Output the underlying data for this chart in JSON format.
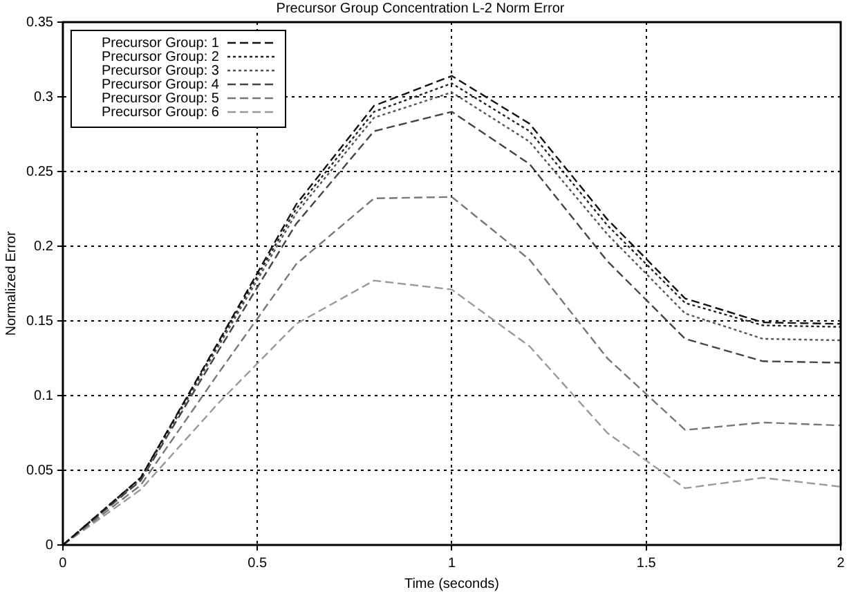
{
  "chart_data": {
    "type": "line",
    "title": "Precursor Group Concentration L-2 Norm Error",
    "xlabel": "Time (seconds)",
    "ylabel": "Normalized Error",
    "x": [
      0,
      0.2,
      0.4,
      0.6,
      0.8,
      1.0,
      1.2,
      1.4,
      1.6,
      1.8,
      2.0
    ],
    "series": [
      {
        "name": "Precursor Group: 1",
        "color": "#111111",
        "line_style": "dashed",
        "values": [
          0,
          0.045,
          0.136,
          0.228,
          0.294,
          0.314,
          0.282,
          0.218,
          0.165,
          0.149,
          0.148
        ]
      },
      {
        "name": "Precursor Group: 2",
        "color": "#222222",
        "line_style": "dotted",
        "values": [
          0,
          0.045,
          0.135,
          0.225,
          0.29,
          0.309,
          0.277,
          0.214,
          0.162,
          0.147,
          0.146
        ]
      },
      {
        "name": "Precursor Group: 3",
        "color": "#555555",
        "line_style": "dotted",
        "values": [
          0,
          0.044,
          0.133,
          0.222,
          0.286,
          0.303,
          0.27,
          0.208,
          0.155,
          0.138,
          0.137
        ]
      },
      {
        "name": "Precursor Group: 4",
        "color": "#444444",
        "line_style": "dashed",
        "values": [
          0,
          0.043,
          0.13,
          0.215,
          0.277,
          0.29,
          0.255,
          0.19,
          0.138,
          0.123,
          0.122
        ]
      },
      {
        "name": "Precursor Group: 5",
        "color": "#777777",
        "line_style": "dashed",
        "values": [
          0,
          0.04,
          0.115,
          0.188,
          0.232,
          0.233,
          0.191,
          0.125,
          0.077,
          0.082,
          0.08
        ]
      },
      {
        "name": "Precursor Group: 6",
        "color": "#999999",
        "line_style": "dashed",
        "values": [
          0,
          0.037,
          0.095,
          0.148,
          0.177,
          0.171,
          0.133,
          0.075,
          0.038,
          0.045,
          0.039
        ]
      }
    ],
    "xlim": [
      0,
      2
    ],
    "xticks": [
      0,
      0.5,
      1,
      1.5,
      2
    ],
    "ylim": [
      0,
      0.35
    ],
    "yticks": [
      0,
      0.05,
      0.1,
      0.15,
      0.2,
      0.25,
      0.3,
      0.35
    ],
    "grid": true,
    "legend": "top left",
    "marker": "none"
  }
}
